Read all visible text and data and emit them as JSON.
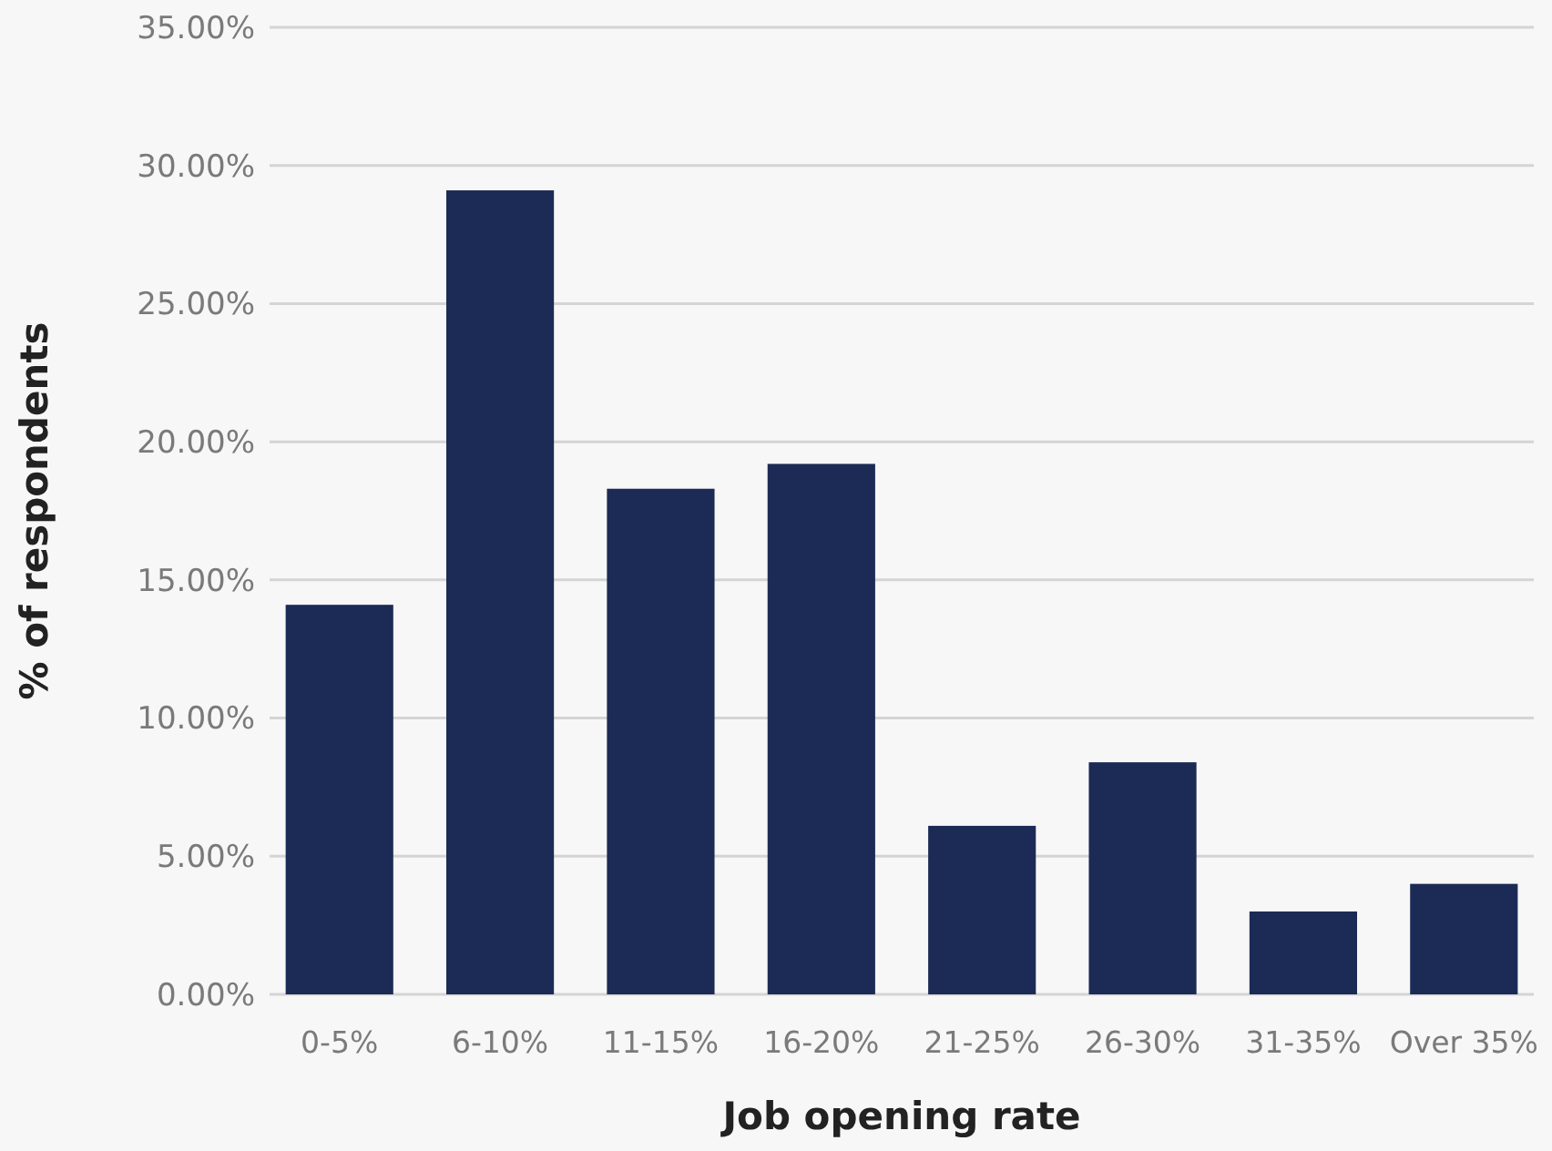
{
  "chart_data": {
    "type": "bar",
    "xlabel": "Job opening rate",
    "ylabel": "% of respondents",
    "categories": [
      "0-5%",
      "6-10%",
      "11-15%",
      "16-20%",
      "21-25%",
      "26-30%",
      "31-35%",
      "Over 35%"
    ],
    "values": [
      14.1,
      29.1,
      18.3,
      19.2,
      6.1,
      8.4,
      3.0,
      4.0
    ],
    "color": "#1c2b55",
    "ylim": [
      0,
      35
    ],
    "yticks": [
      {
        "value": 0,
        "label": "0.00%"
      },
      {
        "value": 5,
        "label": "5.00%"
      },
      {
        "value": 10,
        "label": "10.00%"
      },
      {
        "value": 15,
        "label": "15.00%"
      },
      {
        "value": 20,
        "label": "20.00%"
      },
      {
        "value": 25,
        "label": "25.00%"
      },
      {
        "value": 30,
        "label": "30.00%"
      },
      {
        "value": 35,
        "label": "35.00%"
      }
    ],
    "grid": "y"
  }
}
